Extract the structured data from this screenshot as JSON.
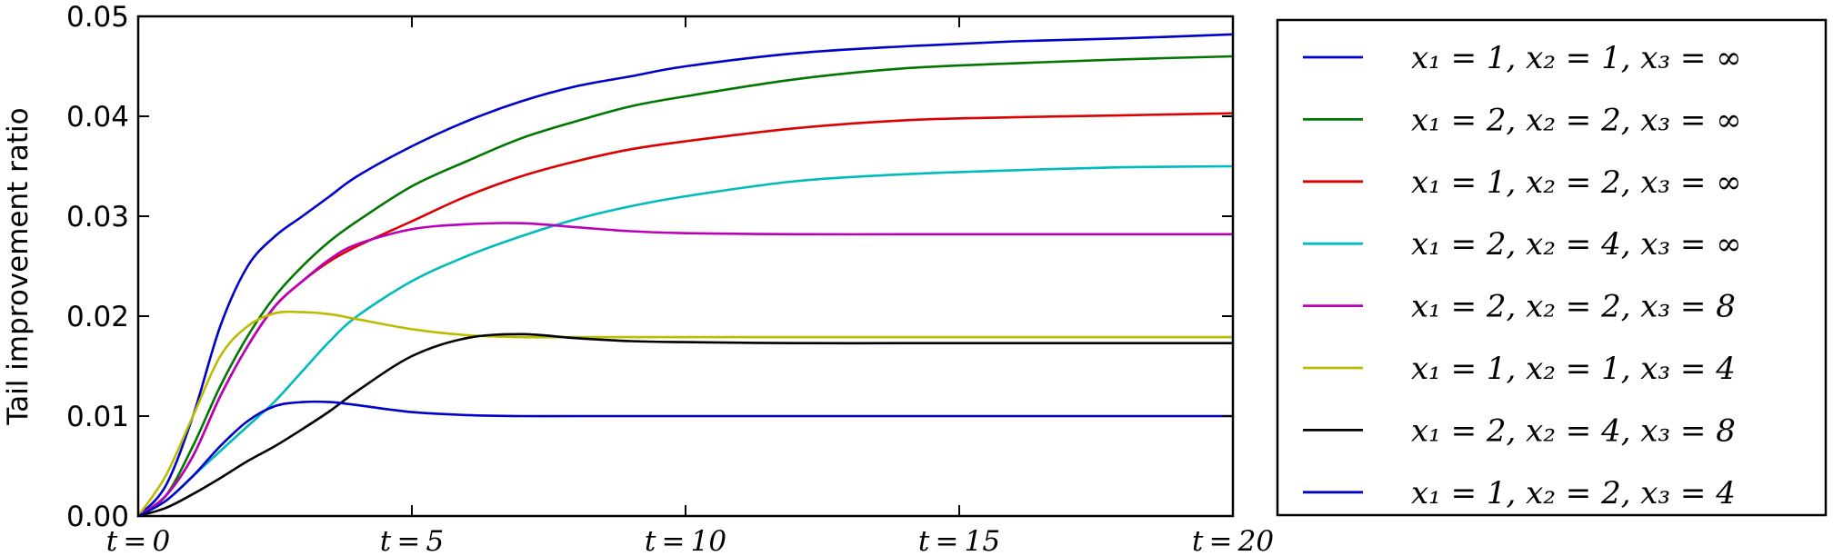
{
  "chart_data": {
    "type": "line",
    "title": "",
    "xlabel": "",
    "ylabel": "Tail improvement ratio",
    "xlim": [
      0,
      20
    ],
    "ylim": [
      0,
      0.05
    ],
    "x_ticks": [
      0,
      5,
      10,
      15,
      20
    ],
    "x_tick_labels": [
      "t = 0",
      "t = 5",
      "t = 10",
      "t = 15",
      "t = 20"
    ],
    "y_ticks": [
      0.0,
      0.01,
      0.02,
      0.03,
      0.04,
      0.05
    ],
    "y_tick_labels": [
      "0.00",
      "0.01",
      "0.02",
      "0.03",
      "0.04",
      "0.05"
    ],
    "grid": false,
    "legend_position": "right",
    "x": [
      0,
      0.5,
      1,
      1.5,
      2,
      2.5,
      3,
      3.5,
      4,
      5,
      6,
      7,
      8,
      9,
      10,
      12,
      14,
      16,
      18,
      20
    ],
    "series": [
      {
        "name": "x₁ = 1, x₂ = 1, x₃ = ∞",
        "color": "#0000cc",
        "values": [
          0,
          0.003,
          0.01,
          0.019,
          0.025,
          0.028,
          0.03,
          0.032,
          0.034,
          0.037,
          0.0395,
          0.0415,
          0.043,
          0.044,
          0.045,
          0.0463,
          0.047,
          0.0475,
          0.0478,
          0.0482
        ]
      },
      {
        "name": "x₁ = 2, x₂ = 2, x₃ = ∞",
        "color": "#007700",
        "values": [
          0,
          0.002,
          0.007,
          0.013,
          0.018,
          0.022,
          0.025,
          0.0275,
          0.0295,
          0.033,
          0.0355,
          0.0378,
          0.0395,
          0.041,
          0.042,
          0.0437,
          0.0448,
          0.0453,
          0.0457,
          0.046
        ]
      },
      {
        "name": "x₁ = 1, x₂ = 2, x₃ = ∞",
        "color": "#dd0000",
        "values": [
          0,
          0.002,
          0.006,
          0.012,
          0.017,
          0.021,
          0.0235,
          0.0255,
          0.027,
          0.0295,
          0.032,
          0.034,
          0.0355,
          0.0367,
          0.0375,
          0.0388,
          0.0396,
          0.0399,
          0.0401,
          0.0403
        ]
      },
      {
        "name": "x₁ = 2, x₂ = 4, x₃ = ∞",
        "color": "#00bbbb",
        "values": [
          0,
          0.0015,
          0.004,
          0.0065,
          0.009,
          0.0115,
          0.0145,
          0.0175,
          0.02,
          0.0235,
          0.026,
          0.028,
          0.0297,
          0.031,
          0.032,
          0.0335,
          0.0342,
          0.0346,
          0.0349,
          0.035
        ]
      },
      {
        "name": "x₁ = 2, x₂ = 2, x₃ = 8",
        "color": "#bb00bb",
        "values": [
          0,
          0.002,
          0.006,
          0.012,
          0.017,
          0.021,
          0.0235,
          0.0257,
          0.0272,
          0.0287,
          0.0292,
          0.0293,
          0.0289,
          0.0285,
          0.0283,
          0.0282,
          0.0282,
          0.0282,
          0.0282,
          0.0282
        ]
      },
      {
        "name": "x₁ = 1, x₂ = 1, x₃ = 4",
        "color": "#bbbb00",
        "values": [
          0,
          0.004,
          0.01,
          0.016,
          0.019,
          0.0203,
          0.0204,
          0.0202,
          0.0197,
          0.0187,
          0.0181,
          0.0179,
          0.0179,
          0.0179,
          0.0179,
          0.0179,
          0.0179,
          0.0179,
          0.0179,
          0.0179
        ]
      },
      {
        "name": "x₁ = 2, x₂ = 4, x₃ = 8",
        "color": "#000000",
        "values": [
          0,
          0.0008,
          0.0022,
          0.0038,
          0.0055,
          0.007,
          0.0087,
          0.0105,
          0.0125,
          0.016,
          0.0178,
          0.0182,
          0.0178,
          0.0175,
          0.0174,
          0.0173,
          0.0173,
          0.0173,
          0.0173,
          0.0173
        ]
      },
      {
        "name": "x₁ = 1, x₂ = 2, x₃ = 4",
        "color": "#0000cc",
        "values": [
          0,
          0.0015,
          0.004,
          0.007,
          0.0095,
          0.011,
          0.0114,
          0.0114,
          0.0111,
          0.0104,
          0.0101,
          0.01,
          0.01,
          0.01,
          0.01,
          0.01,
          0.01,
          0.01,
          0.01,
          0.01
        ]
      }
    ]
  }
}
